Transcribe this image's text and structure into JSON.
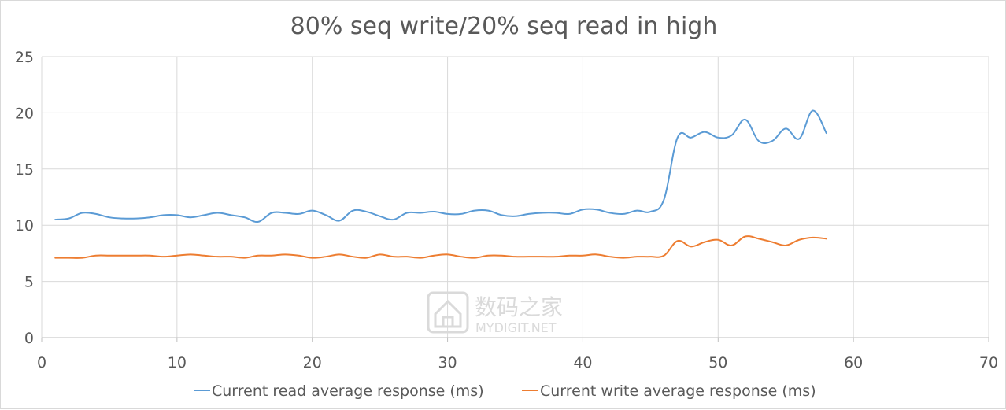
{
  "chart_data": {
    "type": "line",
    "title": "80% seq write/20% seq read in high",
    "xlabel": "",
    "ylabel": "",
    "xlim": [
      0,
      70
    ],
    "ylim": [
      0,
      25
    ],
    "x_ticks": [
      "0",
      "10",
      "20",
      "30",
      "40",
      "50",
      "60",
      "70"
    ],
    "y_ticks": [
      "0",
      "5",
      "10",
      "15",
      "20",
      "25"
    ],
    "grid": true,
    "legend_position": "bottom",
    "x": [
      1,
      2,
      3,
      4,
      5,
      6,
      7,
      8,
      9,
      10,
      11,
      12,
      13,
      14,
      15,
      16,
      17,
      18,
      19,
      20,
      21,
      22,
      23,
      24,
      25,
      26,
      27,
      28,
      29,
      30,
      31,
      32,
      33,
      34,
      35,
      36,
      37,
      38,
      39,
      40,
      41,
      42,
      43,
      44,
      45,
      46,
      47,
      48,
      49,
      50,
      51,
      52,
      53,
      54,
      55,
      56,
      57,
      58
    ],
    "series": [
      {
        "name": "Current read average response (ms)",
        "color": "#5b9bd5",
        "values": [
          10.5,
          10.6,
          11.1,
          11.0,
          10.7,
          10.6,
          10.6,
          10.7,
          10.9,
          10.9,
          10.7,
          10.9,
          11.1,
          10.9,
          10.7,
          10.3,
          11.1,
          11.1,
          11.0,
          11.3,
          10.9,
          10.4,
          11.3,
          11.2,
          10.8,
          10.5,
          11.1,
          11.1,
          11.2,
          11.0,
          11.0,
          11.3,
          11.3,
          10.9,
          10.8,
          11.0,
          11.1,
          11.1,
          11.0,
          11.4,
          11.4,
          11.1,
          11.0,
          11.3,
          11.2,
          12.3,
          17.8,
          17.8,
          18.3,
          17.8,
          18.0,
          19.4,
          17.5,
          17.5,
          18.6,
          17.7,
          20.2,
          18.2
        ]
      },
      {
        "name": "Current write average response (ms)",
        "color": "#ed7d31",
        "values": [
          7.1,
          7.1,
          7.1,
          7.3,
          7.3,
          7.3,
          7.3,
          7.3,
          7.2,
          7.3,
          7.4,
          7.3,
          7.2,
          7.2,
          7.1,
          7.3,
          7.3,
          7.4,
          7.3,
          7.1,
          7.2,
          7.4,
          7.2,
          7.1,
          7.4,
          7.2,
          7.2,
          7.1,
          7.3,
          7.4,
          7.2,
          7.1,
          7.3,
          7.3,
          7.2,
          7.2,
          7.2,
          7.2,
          7.3,
          7.3,
          7.4,
          7.2,
          7.1,
          7.2,
          7.2,
          7.3,
          8.6,
          8.1,
          8.5,
          8.7,
          8.2,
          9.0,
          8.8,
          8.5,
          8.2,
          8.7,
          8.9,
          8.8
        ]
      }
    ]
  },
  "watermark": {
    "cn_text": "数码之家",
    "en_text": "MYDIGIT.NET"
  }
}
